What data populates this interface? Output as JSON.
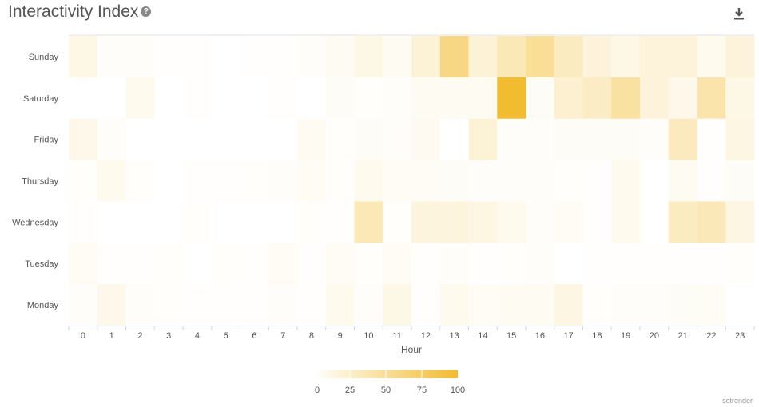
{
  "title": "Interactivity Index",
  "help_icon": "question-circle-icon",
  "download_icon": "download-icon",
  "credit": "sotrender",
  "chart_data": {
    "type": "heatmap",
    "title": "Interactivity Index",
    "xlabel": "Hour",
    "ylabel": "",
    "x": [
      "0",
      "1",
      "2",
      "3",
      "4",
      "5",
      "6",
      "7",
      "8",
      "9",
      "10",
      "11",
      "12",
      "13",
      "14",
      "15",
      "16",
      "17",
      "18",
      "19",
      "20",
      "21",
      "22",
      "23"
    ],
    "y": [
      "Sunday",
      "Saturday",
      "Friday",
      "Thursday",
      "Wednesday",
      "Tuesday",
      "Monday"
    ],
    "values": [
      [
        12,
        3,
        3,
        1,
        1,
        0,
        1,
        1,
        3,
        6,
        12,
        6,
        20,
        60,
        20,
        35,
        50,
        30,
        18,
        12,
        18,
        18,
        8,
        18
      ],
      [
        0,
        0,
        8,
        0,
        1,
        0,
        0,
        1,
        0,
        4,
        2,
        3,
        6,
        6,
        6,
        100,
        4,
        22,
        28,
        45,
        18,
        10,
        40,
        12
      ],
      [
        10,
        3,
        0,
        0,
        0,
        0,
        0,
        0,
        6,
        2,
        4,
        3,
        7,
        0,
        20,
        3,
        3,
        4,
        4,
        4,
        3,
        32,
        1,
        14
      ],
      [
        2,
        8,
        2,
        0,
        1,
        1,
        2,
        3,
        5,
        2,
        8,
        5,
        5,
        4,
        3,
        3,
        3,
        2,
        1,
        8,
        0,
        6,
        1,
        4
      ],
      [
        1,
        0,
        0,
        0,
        2,
        0,
        0,
        0,
        2,
        1,
        35,
        2,
        16,
        16,
        14,
        8,
        3,
        5,
        1,
        8,
        0,
        30,
        34,
        14
      ],
      [
        5,
        1,
        1,
        2,
        0,
        2,
        1,
        5,
        1,
        5,
        2,
        5,
        1,
        3,
        1,
        2,
        3,
        0,
        1,
        1,
        1,
        1,
        1,
        2
      ],
      [
        3,
        10,
        3,
        2,
        1,
        1,
        1,
        3,
        1,
        8,
        3,
        12,
        1,
        8,
        5,
        6,
        6,
        14,
        2,
        3,
        3,
        4,
        5,
        0
      ]
    ],
    "color_scale": {
      "min": 0,
      "max": 100,
      "min_color": "#FFFFFF",
      "max_color": "#F2BC30"
    },
    "legend": {
      "placement": "bottom-center",
      "ticks": [
        "0",
        "25",
        "50",
        "75",
        "100"
      ]
    },
    "grid": false
  }
}
